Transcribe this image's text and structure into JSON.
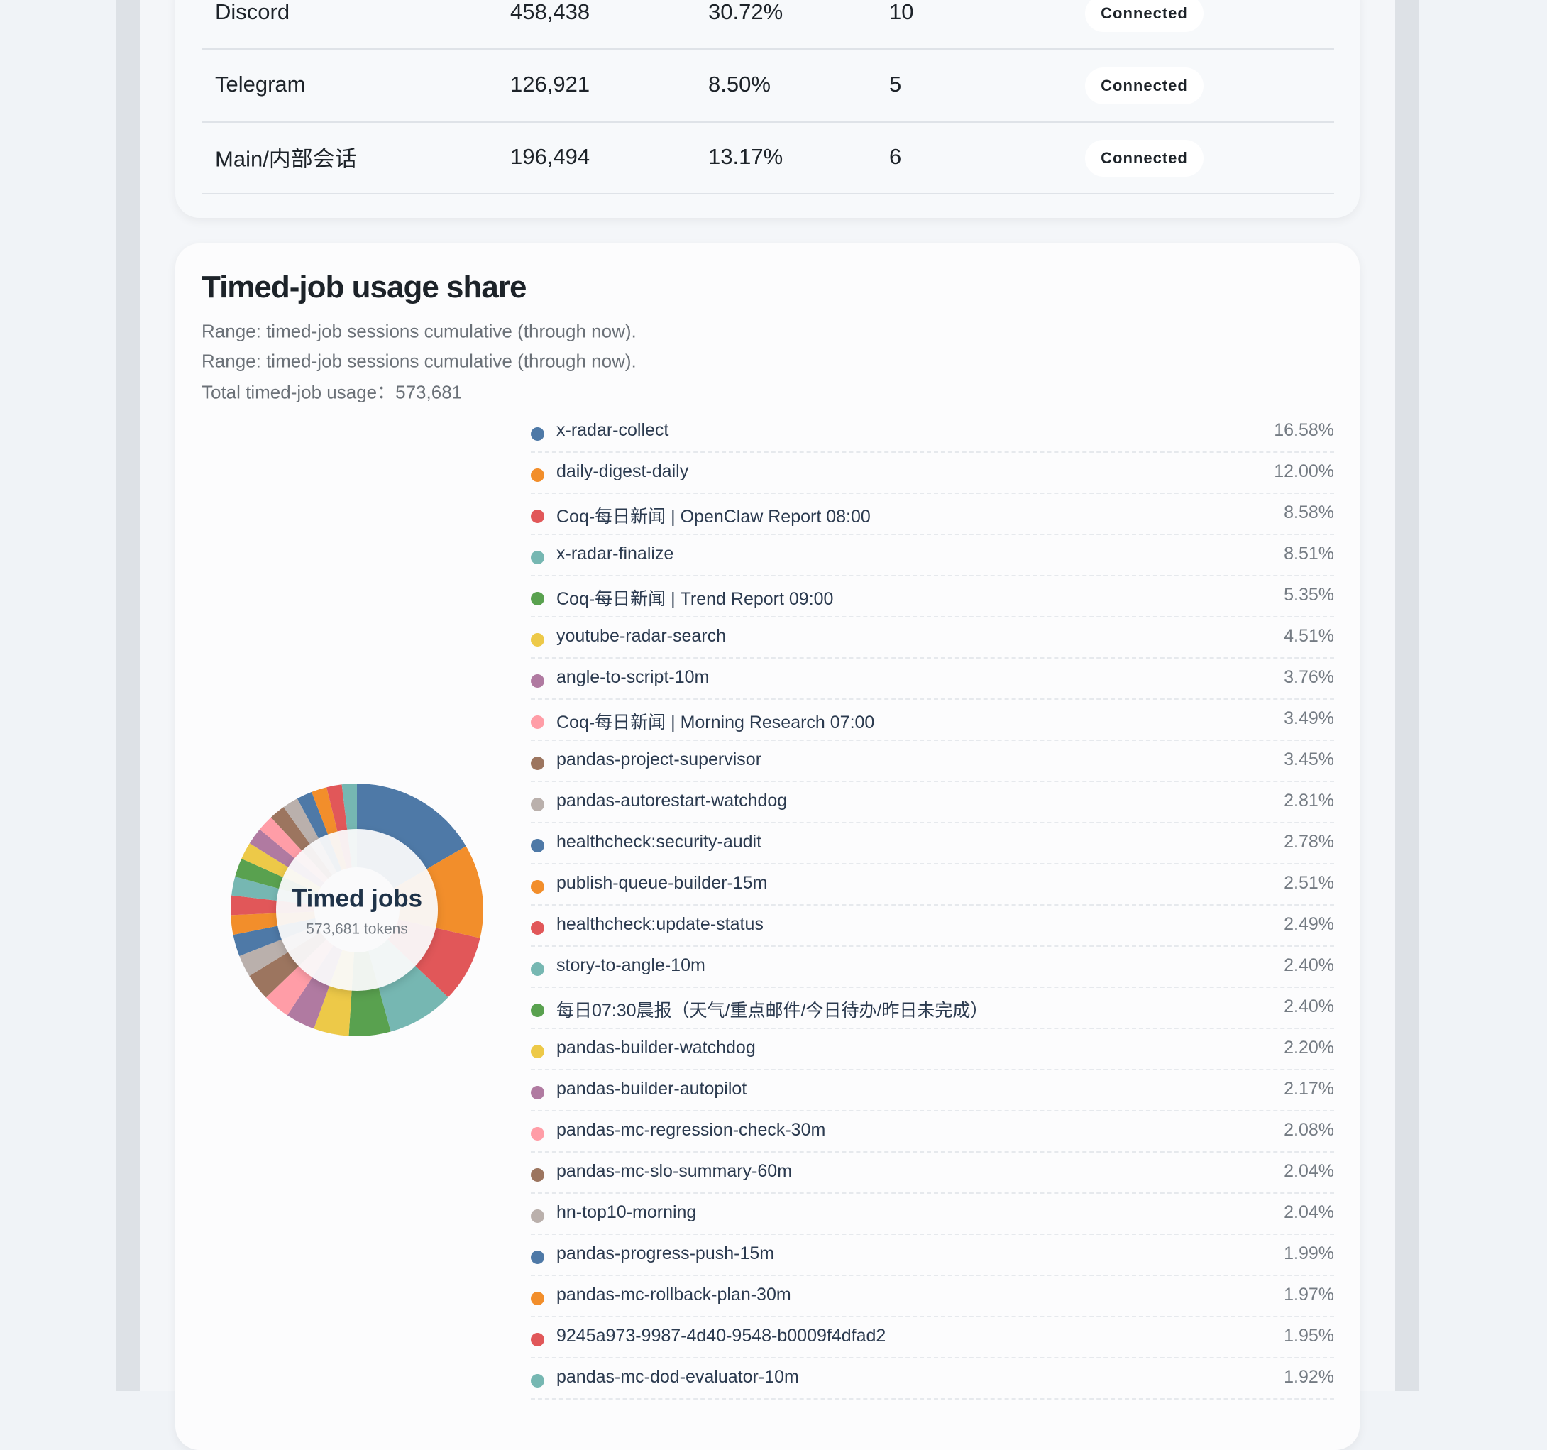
{
  "table": {
    "rows": [
      [
        "Discord",
        "458,438",
        "30.72%",
        "10",
        "Connected"
      ],
      [
        "Telegram",
        "126,921",
        "8.50%",
        "5",
        "Connected"
      ],
      [
        "Main/内部会话",
        "196,494",
        "13.17%",
        "6",
        "Connected"
      ]
    ]
  },
  "timed_jobs": {
    "title": "Timed-job usage share",
    "notes": [
      "Range: timed-job sessions cumulative (through now).",
      "Range: timed-job sessions cumulative (through now).",
      "Total timed-job usage：573,681"
    ],
    "center_title": "Timed jobs",
    "center_subtitle": "573,681 tokens",
    "names": [
      "x-radar-collect",
      "daily-digest-daily",
      "Coq-每日新闻 | OpenClaw Report 08:00",
      "x-radar-finalize",
      "Coq-每日新闻 | Trend Report 09:00",
      "youtube-radar-search",
      "angle-to-script-10m",
      "Coq-每日新闻 | Morning Research 07:00",
      "pandas-project-supervisor",
      "pandas-autorestart-watchdog",
      "healthcheck:security-audit",
      "publish-queue-builder-15m",
      "healthcheck:update-status",
      "story-to-angle-10m",
      "每日07:30晨报（天气/重点邮件/今日待办/昨日未完成）",
      "pandas-builder-watchdog",
      "pandas-builder-autopilot",
      "pandas-mc-regression-check-30m",
      "pandas-mc-slo-summary-60m",
      "hn-top10-morning",
      "pandas-progress-push-15m",
      "pandas-mc-rollback-plan-30m",
      "9245a973-9987-4d40-9548-b0009f4dfad2",
      "pandas-mc-dod-evaluator-10m"
    ],
    "values": [
      16.58,
      12.0,
      8.58,
      8.51,
      5.35,
      4.51,
      3.76,
      3.49,
      3.45,
      2.81,
      2.78,
      2.51,
      2.49,
      2.4,
      2.4,
      2.2,
      2.17,
      2.08,
      2.04,
      2.04,
      1.99,
      1.97,
      1.95,
      1.92
    ],
    "value_labels": [
      "16.58%",
      "12.00%",
      "8.58%",
      "8.51%",
      "5.35%",
      "4.51%",
      "3.76%",
      "3.49%",
      "3.45%",
      "2.81%",
      "2.78%",
      "2.51%",
      "2.49%",
      "2.40%",
      "2.40%",
      "2.20%",
      "2.17%",
      "2.08%",
      "2.04%",
      "2.04%",
      "1.99%",
      "1.97%",
      "1.95%",
      "1.92%"
    ],
    "colors": [
      "#4e79a7",
      "#f28e2b",
      "#e15759",
      "#76b7b2",
      "#59a14f",
      "#edc948",
      "#b07aa1",
      "#ff9da7",
      "#9c755f",
      "#bab0ac",
      "#4e79a7",
      "#f28e2b",
      "#e15759",
      "#76b7b2",
      "#59a14f",
      "#edc948",
      "#b07aa1",
      "#ff9da7",
      "#9c755f",
      "#bab0ac",
      "#4e79a7",
      "#f28e2b",
      "#e15759",
      "#76b7b2"
    ]
  }
}
